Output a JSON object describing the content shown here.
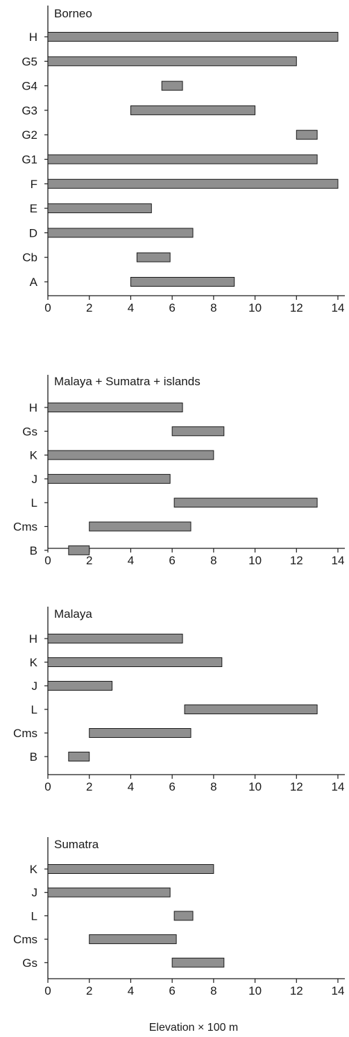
{
  "chart_data": [
    {
      "type": "range-bar",
      "title": "Borneo",
      "categories": [
        "H",
        "G5",
        "G4",
        "G3",
        "G2",
        "G1",
        "F",
        "E",
        "D",
        "Cb",
        "A"
      ],
      "ranges": [
        [
          0,
          14
        ],
        [
          0,
          12
        ],
        [
          5.5,
          6.5
        ],
        [
          4,
          10
        ],
        [
          12,
          13
        ],
        [
          0,
          13
        ],
        [
          0,
          14
        ],
        [
          0,
          5
        ],
        [
          0,
          7
        ],
        [
          4.3,
          5.9
        ],
        [
          4,
          9
        ]
      ],
      "xlim": [
        0,
        14
      ],
      "xticks": [
        "0",
        "2",
        "4",
        "6",
        "8",
        "10",
        "12",
        "14"
      ]
    },
    {
      "type": "range-bar",
      "title": "Malaya + Sumatra + islands",
      "categories": [
        "H",
        "Gs",
        "K",
        "J",
        "L",
        "Cms",
        "B"
      ],
      "ranges": [
        [
          0,
          6.5
        ],
        [
          6,
          8.5
        ],
        [
          0,
          8
        ],
        [
          0,
          5.9
        ],
        [
          6.1,
          13
        ],
        [
          2,
          6.9
        ],
        [
          1,
          2
        ]
      ],
      "xlim": [
        0,
        14
      ],
      "xticks": [
        "0",
        "2",
        "4",
        "6",
        "8",
        "10",
        "12",
        "14"
      ]
    },
    {
      "type": "range-bar",
      "title": "Malaya",
      "categories": [
        "H",
        "K",
        "J",
        "L",
        "Cms",
        "B"
      ],
      "ranges": [
        [
          0,
          6.5
        ],
        [
          0,
          8.4
        ],
        [
          0,
          3.1
        ],
        [
          6.6,
          13
        ],
        [
          2,
          6.9
        ],
        [
          1,
          2
        ]
      ],
      "xlim": [
        0,
        14
      ],
      "xticks": [
        "0",
        "2",
        "4",
        "6",
        "8",
        "10",
        "12",
        "14"
      ]
    },
    {
      "type": "range-bar",
      "title": "Sumatra",
      "categories": [
        "K",
        "J",
        "L",
        "Cms",
        "Gs"
      ],
      "ranges": [
        [
          0,
          8
        ],
        [
          0,
          5.9
        ],
        [
          6.1,
          7
        ],
        [
          2,
          6.2
        ],
        [
          6,
          8.5
        ]
      ],
      "xlim": [
        0,
        14
      ],
      "xticks": [
        "0",
        "2",
        "4",
        "6",
        "8",
        "10",
        "12",
        "14"
      ]
    }
  ],
  "xlabel": "Elevation × 100 m",
  "colors": {
    "bar_fill": "#8f8f8f",
    "bar_stroke": "#1a1a1a",
    "axis": "#1a1a1a"
  }
}
